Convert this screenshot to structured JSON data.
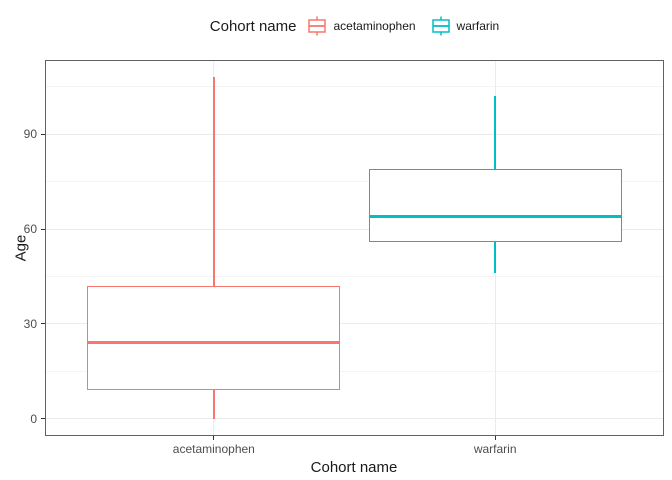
{
  "chart_data": {
    "type": "boxplot",
    "legend_title": "Cohort name",
    "xlabel": "Cohort name",
    "ylabel": "Age",
    "categories": [
      "acetaminophen",
      "warfarin"
    ],
    "series": [
      {
        "name": "acetaminophen",
        "color": "#F8766D",
        "min": 0,
        "q1": 9,
        "median": 24,
        "q3": 42,
        "max": 108
      },
      {
        "name": "warfarin",
        "color": "#00BFC4",
        "min": 46,
        "q1": 56,
        "median": 64,
        "q3": 79,
        "max": 102
      }
    ],
    "ylim": [
      -5.4,
      113.4
    ],
    "y_major_ticks": [
      0,
      30,
      60,
      90
    ],
    "y_minor_ticks": [
      15,
      45,
      75,
      105
    ],
    "grid": true,
    "legend_position": "top",
    "outliers": []
  },
  "colors": {
    "panel_border": "#616161",
    "grid_major": "#ebebeb",
    "grid_minor": "#f4f4f4",
    "tick_mark": "#333333",
    "tick_label": "#4d4d4d",
    "title_text": "#1a1a1a",
    "background": "#ffffff"
  }
}
